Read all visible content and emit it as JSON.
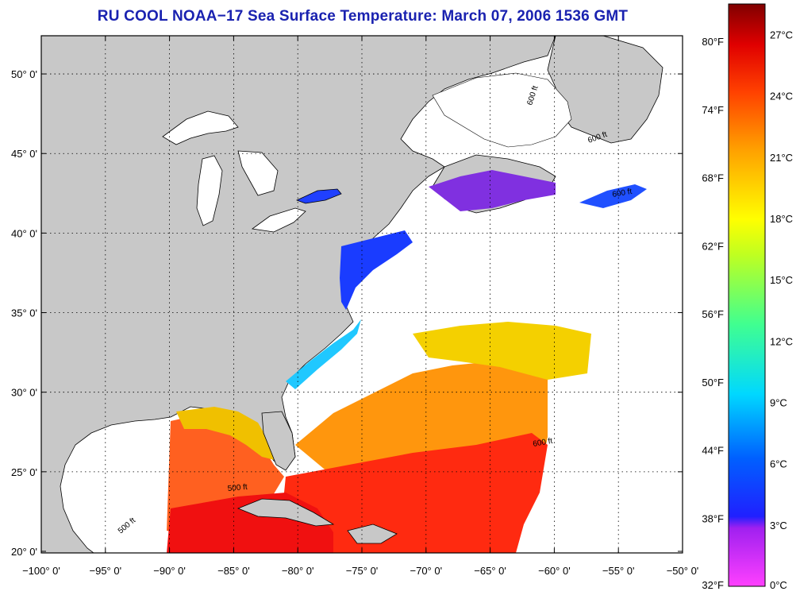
{
  "title": "RU COOL  NOAA−17  Sea Surface Temperature:  March 07, 2006 1536 GMT",
  "map": {
    "lon_range": [
      -100,
      -50
    ],
    "lat_range": [
      19.9,
      52.4
    ],
    "grid": true,
    "lon_labels": [
      "−100° 0'",
      "−95° 0'",
      "−90° 0'",
      "−85° 0'",
      "−80° 0'",
      "−75° 0'",
      "−70° 0'",
      "−65° 0'",
      "−60° 0'",
      "−55° 0'",
      "−50° 0'"
    ],
    "lat_labels": [
      "50° 0'",
      "45° 0'",
      "40° 0'",
      "35° 0'",
      "30° 0'",
      "25° 0'",
      "20° 0'"
    ],
    "isobath_labels": [
      "600 ft",
      "600 ft",
      "600 ft",
      "600 ft",
      "500 ft",
      "500 ft"
    ],
    "colors": {
      "land": "#c8c8c8",
      "ocean_nodata": "#ffffff",
      "title": "#1a22b0"
    }
  },
  "colorbar": {
    "fahrenheit_labels": [
      "80°F",
      "74°F",
      "68°F",
      "62°F",
      "56°F",
      "50°F",
      "44°F",
      "38°F",
      "32°F"
    ],
    "celsius_labels": [
      "27°C",
      "24°C",
      "21°C",
      "18°C",
      "15°C",
      "12°C",
      "9°C",
      "6°C",
      "3°C",
      "0°C"
    ],
    "range_c": [
      0,
      28.5
    ],
    "colors": [
      "#ff40ff",
      "#a020f0",
      "#2020ff",
      "#0080ff",
      "#00ffff",
      "#40ff80",
      "#ffff00",
      "#ffa000",
      "#ff3000",
      "#c00000",
      "#800000"
    ]
  }
}
